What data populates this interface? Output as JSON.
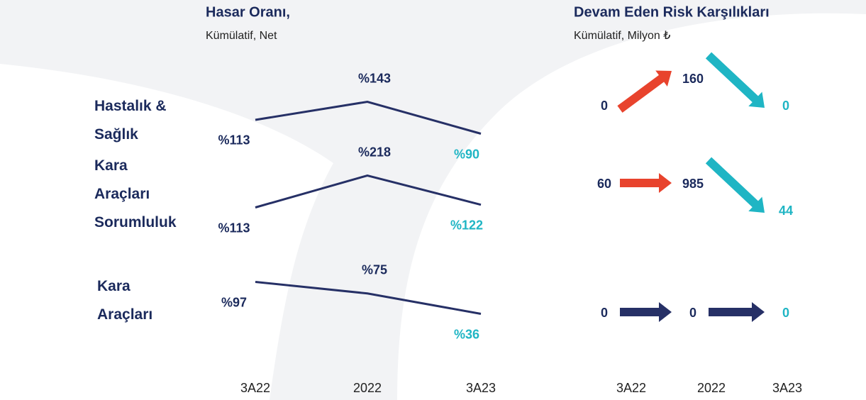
{
  "chart_data": [
    {
      "type": "line",
      "title": "Hasar Oranı,",
      "subtitle": "Kümülatif, Net",
      "categories": [
        "3A22",
        "2022",
        "3A23"
      ],
      "series": [
        {
          "name": "Hastalık & Sağlık",
          "color": "#263066",
          "values": [
            113,
            143,
            90
          ],
          "value_labels": [
            "%113",
            "%143",
            "%90"
          ],
          "value_label_colors": [
            "#1b2a5c",
            "#1b2a5c",
            "#1fb5c4"
          ]
        },
        {
          "name": "Kara Araçları Sorumluluk",
          "color": "#263066",
          "values": [
            113,
            218,
            122
          ],
          "value_labels": [
            "%113",
            "%218",
            "%122"
          ],
          "value_label_colors": [
            "#1b2a5c",
            "#1b2a5c",
            "#1fb5c4"
          ]
        },
        {
          "name": "Kara Araçları",
          "color": "#263066",
          "values": [
            97,
            75,
            36
          ],
          "value_labels": [
            "%97",
            "%75",
            "%36"
          ],
          "value_label_colors": [
            "#1b2a5c",
            "#1b2a5c",
            "#1fb5c4"
          ]
        }
      ]
    },
    {
      "type": "arrow",
      "title": "Devam Eden Risk Karşılıkları",
      "subtitle": "Kümülatif, Milyon ₺",
      "categories": [
        "3A22",
        "2022",
        "3A23"
      ],
      "series": [
        {
          "values": [
            0,
            160,
            0
          ],
          "arrow_colors": [
            "#e8432d",
            "#1fb5c4"
          ],
          "value_label_colors": [
            "#1b2a5c",
            "#1b2a5c",
            "#1fb5c4"
          ]
        },
        {
          "values": [
            60,
            985,
            44
          ],
          "arrow_colors": [
            "#e8432d",
            "#1fb5c4"
          ],
          "value_label_colors": [
            "#1b2a5c",
            "#1b2a5c",
            "#1fb5c4"
          ]
        },
        {
          "values": [
            0,
            0,
            0
          ],
          "arrow_colors": [
            "#263066",
            "#263066"
          ],
          "value_label_colors": [
            "#1b2a5c",
            "#1b2a5c",
            "#1fb5c4"
          ]
        }
      ]
    }
  ]
}
